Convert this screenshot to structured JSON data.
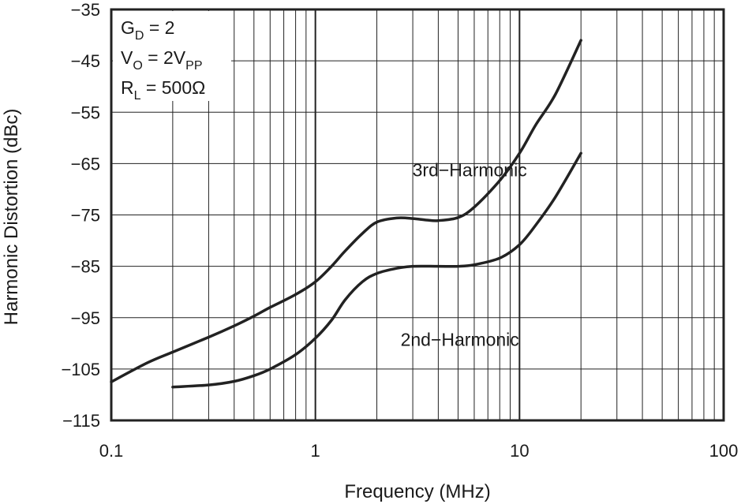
{
  "chart_data": {
    "type": "line",
    "title": "",
    "xlabel": "Frequency (MHz)",
    "ylabel": "Harmonic Distortion (dBc)",
    "xscale": "log",
    "xlim": [
      0.1,
      100
    ],
    "ylim": [
      -115,
      -35
    ],
    "grid": true,
    "x_ticks": [
      0.1,
      1,
      10,
      100
    ],
    "x_tick_labels": [
      "0.1",
      "1",
      "10",
      "100"
    ],
    "y_ticks": [
      -115,
      -105,
      -95,
      -85,
      -75,
      -65,
      -55,
      -45,
      -35
    ],
    "y_tick_labels": [
      "−115",
      "−105",
      "−95",
      "−85",
      "−75",
      "−65",
      "−55",
      "−45",
      "−35"
    ],
    "conditions": [
      {
        "main": "G",
        "sub": "D",
        "rest": " = 2"
      },
      {
        "main": "V",
        "sub": "O",
        "rest": " = 2V",
        "sub2": "PP"
      },
      {
        "main": "R",
        "sub": "L",
        "rest": " = 500Ω"
      }
    ],
    "series": [
      {
        "name": "3rd−Harmonic",
        "x": [
          0.1,
          0.15,
          0.2,
          0.3,
          0.4,
          0.5,
          0.6,
          0.8,
          1.0,
          1.2,
          1.4,
          1.7,
          2.0,
          2.5,
          3.0,
          3.5,
          4.0,
          5.0,
          6.0,
          8.0,
          10,
          12,
          15,
          20
        ],
        "values": [
          -107.5,
          -103.8,
          -101.7,
          -98.8,
          -96.6,
          -94.7,
          -93.0,
          -90.5,
          -88.0,
          -85.0,
          -82.0,
          -78.6,
          -76.4,
          -75.6,
          -75.7,
          -76.0,
          -76.1,
          -75.5,
          -73.5,
          -68.3,
          -63.0,
          -57.5,
          -51.5,
          -41.0
        ]
      },
      {
        "name": "2nd−Harmonic",
        "x": [
          0.2,
          0.3,
          0.4,
          0.5,
          0.6,
          0.8,
          1.0,
          1.2,
          1.4,
          1.7,
          2.0,
          2.5,
          3.0,
          4.0,
          5.0,
          6.0,
          8.0,
          10,
          12,
          15,
          20
        ],
        "values": [
          -108.5,
          -108.1,
          -107.4,
          -106.3,
          -105.0,
          -102.2,
          -99.0,
          -95.5,
          -91.5,
          -88.0,
          -86.4,
          -85.4,
          -85.0,
          -85.0,
          -85.0,
          -84.7,
          -83.4,
          -80.8,
          -77.0,
          -71.5,
          -63.0
        ]
      }
    ],
    "series_label_positions": [
      {
        "series": "3rd−Harmonic",
        "x": 5.7,
        "y": -67.5
      },
      {
        "series": "2nd−Harmonic",
        "x": 5.1,
        "y": -100.5
      }
    ],
    "colors": {
      "line": "#222222",
      "grid": "#222222",
      "text": "#1a1a1a",
      "background": "#ffffff"
    }
  }
}
